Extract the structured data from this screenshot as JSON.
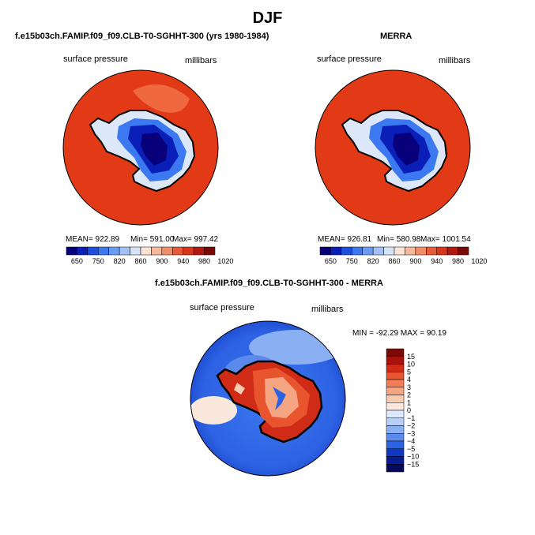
{
  "figure": {
    "title": "DJF",
    "panel_left_title": "f.e15b03ch.FAMIP.f09_f09.CLB-T0-SGHHT-300 (yrs 1980-1984)",
    "panel_right_title": "MERRA",
    "panel_diff_title": "f.e15b03ch.FAMIP.f09_f09.CLB-T0-SGHHT-300 - MERRA"
  },
  "chart_data": [
    {
      "type": "heatmap",
      "name": "model",
      "variable_label": "surface pressure",
      "units_label": "millibars",
      "stats": {
        "mean": "MEAN= 922.89",
        "min": "Min= 591.00",
        "max": "Max= 997.42"
      },
      "colorbar_ticks": [
        "650",
        "750",
        "820",
        "860",
        "900",
        "940",
        "980",
        "1020"
      ],
      "colorbar_colors": [
        "#08007a",
        "#0a1fb8",
        "#1e4ee0",
        "#3c78f0",
        "#6a9cf5",
        "#a5c2f7",
        "#d6e4f9",
        "#fbe3d6",
        "#f7b89c",
        "#f28d6a",
        "#e95a37",
        "#d8351b",
        "#b31810",
        "#7a0a06"
      ]
    },
    {
      "type": "heatmap",
      "name": "MERRA",
      "variable_label": "surface pressure",
      "units_label": "millibars",
      "stats": {
        "mean": "MEAN= 926.81",
        "min": "Min= 580.98",
        "max": "Max= 1001.54"
      },
      "colorbar_ticks": [
        "650",
        "750",
        "820",
        "860",
        "900",
        "940",
        "980",
        "1020"
      ],
      "colorbar_colors": [
        "#08007a",
        "#0a1fb8",
        "#1e4ee0",
        "#3c78f0",
        "#6a9cf5",
        "#a5c2f7",
        "#d6e4f9",
        "#fbe3d6",
        "#f7b89c",
        "#f28d6a",
        "#e95a37",
        "#d8351b",
        "#b31810",
        "#7a0a06"
      ]
    },
    {
      "type": "heatmap",
      "name": "difference",
      "variable_label": "surface pressure",
      "units_label": "millibars",
      "stats": {
        "minmax": "MIN = -92.29 MAX = 90.19"
      },
      "colorbar_ticks": [
        "15",
        "10",
        "5",
        "4",
        "3",
        "2",
        "1",
        "0",
        "−1",
        "−2",
        "−3",
        "−4",
        "−5",
        "−10",
        "−15"
      ],
      "colorbar_colors": [
        "#7a0a06",
        "#a8140c",
        "#cf2b16",
        "#e8542e",
        "#f07d58",
        "#f5a582",
        "#f9cbb0",
        "#fbe8dc",
        "#dde9fa",
        "#b7cff6",
        "#8aaff2",
        "#5a8aec",
        "#2d62e3",
        "#1038c4",
        "#0a1c93",
        "#050a5c"
      ]
    }
  ]
}
